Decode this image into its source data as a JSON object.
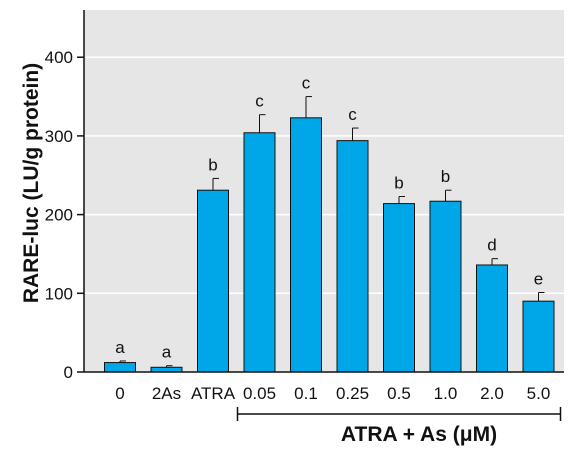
{
  "chart_data": {
    "type": "bar",
    "categories": [
      "0",
      "2As",
      "ATRA",
      "0.05",
      "0.1",
      "0.25",
      "0.5",
      "1.0",
      "2.0",
      "5.0"
    ],
    "values": [
      12,
      6,
      231,
      304,
      323,
      294,
      214,
      217,
      136,
      90
    ],
    "error_upper": [
      2,
      2,
      15,
      23,
      27,
      16,
      9,
      14,
      8,
      11
    ],
    "significance_labels": [
      "a",
      "a",
      "b",
      "c",
      "c",
      "c",
      "b",
      "b",
      "d",
      "e"
    ],
    "ylabel": "RARE-luc (LU/g protein)",
    "yticks": [
      0,
      100,
      200,
      300,
      400
    ],
    "ylim": [
      0,
      460
    ],
    "grid": true,
    "bar_color": "#00a7e8",
    "bracket": {
      "label": "ATRA + As (μM)",
      "from_category": "0.05",
      "to_category": "5.0"
    }
  }
}
